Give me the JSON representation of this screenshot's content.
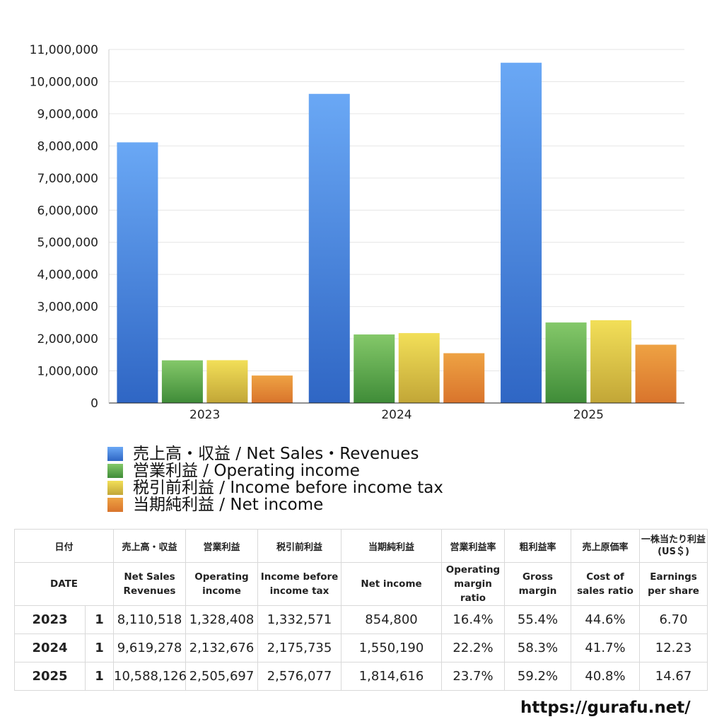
{
  "chart_data": {
    "type": "bar",
    "categories": [
      "2023",
      "2024",
      "2025"
    ],
    "ylim": [
      0,
      11000000
    ],
    "yticks": [
      "0",
      "1,000,000",
      "2,000,000",
      "3,000,000",
      "4,000,000",
      "5,000,000",
      "6,000,000",
      "7,000,000",
      "8,000,000",
      "9,000,000",
      "10,000,000",
      "11,000,000"
    ],
    "grid": true,
    "legend_position": "bottom",
    "series": [
      {
        "name": "売上高・収益 / Net Sales・Revenues",
        "values": [
          8110518,
          9619278,
          10588126
        ],
        "color_top": "#6aa8f5",
        "color_bottom": "#2f66c4"
      },
      {
        "name": "営業利益 / Operating income",
        "values": [
          1328408,
          2132676,
          2505697
        ],
        "color_top": "#84c869",
        "color_bottom": "#3f8c38"
      },
      {
        "name": "税引前利益 / Income before income tax",
        "values": [
          1332571,
          2175735,
          2576077
        ],
        "color_top": "#f2df58",
        "color_bottom": "#c2a637"
      },
      {
        "name": "当期純利益 / Net income",
        "values": [
          854800,
          1550190,
          1814616
        ],
        "color_top": "#eea243",
        "color_bottom": "#d9742c"
      }
    ]
  },
  "table": {
    "headers_ja": [
      "日付",
      "",
      "売上高・収益",
      "営業利益",
      "税引前利益",
      "当期純利益",
      "営業利益率",
      "粗利益率",
      "売上原価率",
      "一株当たり利益\n(US＄)"
    ],
    "headers_en": [
      "DATE",
      "",
      "Net Sales\nRevenues",
      "Operating\nincome",
      "Income before\nincome tax",
      "Net income",
      "Operating\nmargin\nratio",
      "Gross\nmargin",
      "Cost of\nsales ratio",
      "Earnings\nper share"
    ],
    "rows": [
      [
        "2023",
        "1",
        "8,110,518",
        "1,328,408",
        "1,332,571",
        "854,800",
        "16.4%",
        "55.4%",
        "44.6%",
        "6.70"
      ],
      [
        "2024",
        "1",
        "9,619,278",
        "2,132,676",
        "2,175,735",
        "1,550,190",
        "22.2%",
        "58.3%",
        "41.7%",
        "12.23"
      ],
      [
        "2025",
        "1",
        "10,588,126",
        "2,505,697",
        "2,576,077",
        "1,814,616",
        "23.7%",
        "59.2%",
        "40.8%",
        "14.67"
      ]
    ]
  },
  "footer": {
    "url": "https://gurafu.net/"
  }
}
